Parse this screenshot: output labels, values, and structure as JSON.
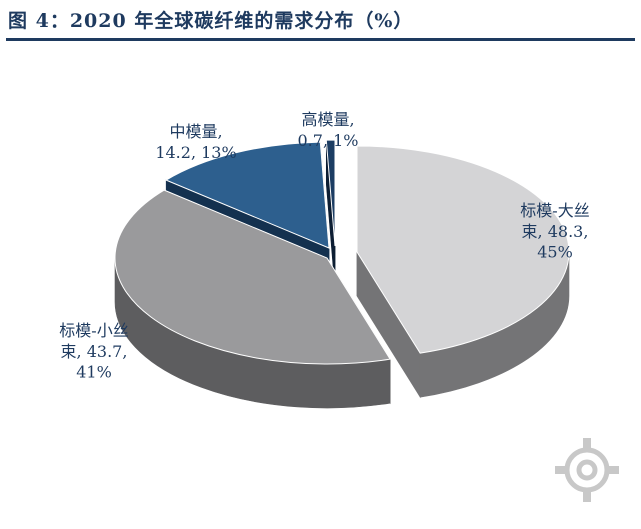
{
  "figure_title": "图 4：2020 年全球碳纤维的需求分布（%）",
  "chart_data": {
    "type": "pie",
    "title": "2020 年全球碳纤维的需求分布（%）",
    "unit": "%",
    "style": "3d-exploded",
    "slices": [
      {
        "name": "标模-大丝束",
        "value": 48.3,
        "percent": "45%",
        "color": "#d4d4d6",
        "side": "#747476",
        "label_lines": [
          "标模-大丝",
          "束, 48.3,",
          "45%"
        ]
      },
      {
        "name": "标模-小丝束",
        "value": 43.7,
        "percent": "41%",
        "color": "#9a9a9c",
        "side": "#5d5d5f",
        "label_lines": [
          "标模-小丝",
          "束, 43.7,",
          "41%"
        ]
      },
      {
        "name": "中模量",
        "value": 14.2,
        "percent": "13%",
        "color": "#2d5f8e",
        "side": "#14314f",
        "label_lines": [
          "中模量,",
          "14.2, 13%"
        ]
      },
      {
        "name": "高模量",
        "value": 0.7,
        "percent": "1%",
        "color": "#1c3d63",
        "side": "#0d1e33",
        "label_lines": [
          "高模量,",
          "0.7, 1%"
        ]
      }
    ]
  }
}
